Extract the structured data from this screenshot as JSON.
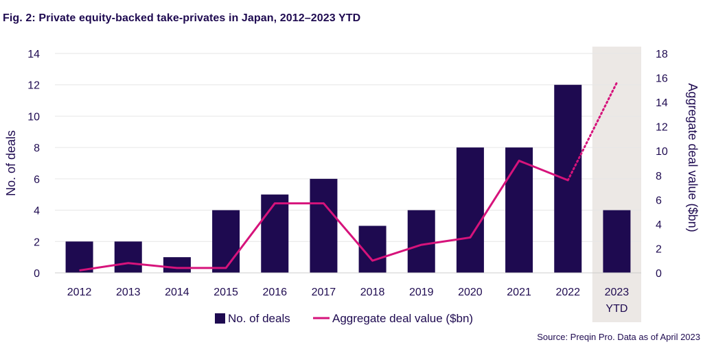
{
  "title": "Fig. 2: Private equity-backed take-privates in Japan, 2012–2023 YTD",
  "source": "Source: Preqin Pro. Data as of April 2023",
  "colors": {
    "bar": "#1e0a50",
    "line": "#d6137b",
    "highlight": "#ece8e5",
    "grid": "#e6e6e6",
    "text": "#1e0a50"
  },
  "chart_data": {
    "type": "bar",
    "categories": [
      "2012",
      "2013",
      "2014",
      "2015",
      "2016",
      "2017",
      "2018",
      "2019",
      "2020",
      "2021",
      "2022",
      "2023 YTD"
    ],
    "category_lines": [
      [
        "2012"
      ],
      [
        "2013"
      ],
      [
        "2014"
      ],
      [
        "2015"
      ],
      [
        "2016"
      ],
      [
        "2017"
      ],
      [
        "2018"
      ],
      [
        "2019"
      ],
      [
        "2020"
      ],
      [
        "2021"
      ],
      [
        "2022"
      ],
      [
        "2023",
        "YTD"
      ]
    ],
    "series": [
      {
        "name": "No. of deals",
        "type": "bar",
        "axis": "left",
        "values": [
          2,
          2,
          1,
          4,
          5,
          6,
          3,
          4,
          8,
          8,
          12,
          4
        ]
      },
      {
        "name": "Aggregate deal value ($bn)",
        "type": "line",
        "axis": "right",
        "values": [
          0.2,
          0.8,
          0.4,
          0.4,
          5.7,
          5.7,
          1.0,
          2.3,
          2.9,
          9.2,
          7.6,
          15.6
        ],
        "dotted_from_index": 10
      }
    ],
    "ylabel": "No. of deals",
    "y2label": "Aggregate deal value ($bn)",
    "ylim": [
      0,
      14
    ],
    "y2lim": [
      0,
      18
    ],
    "yticks": [
      0,
      2,
      4,
      6,
      8,
      10,
      12,
      14
    ],
    "y2ticks": [
      0,
      2,
      4,
      6,
      8,
      10,
      12,
      14,
      16,
      18
    ],
    "highlighted_category": "2023 YTD",
    "grid": true,
    "legend_position": "bottom"
  }
}
